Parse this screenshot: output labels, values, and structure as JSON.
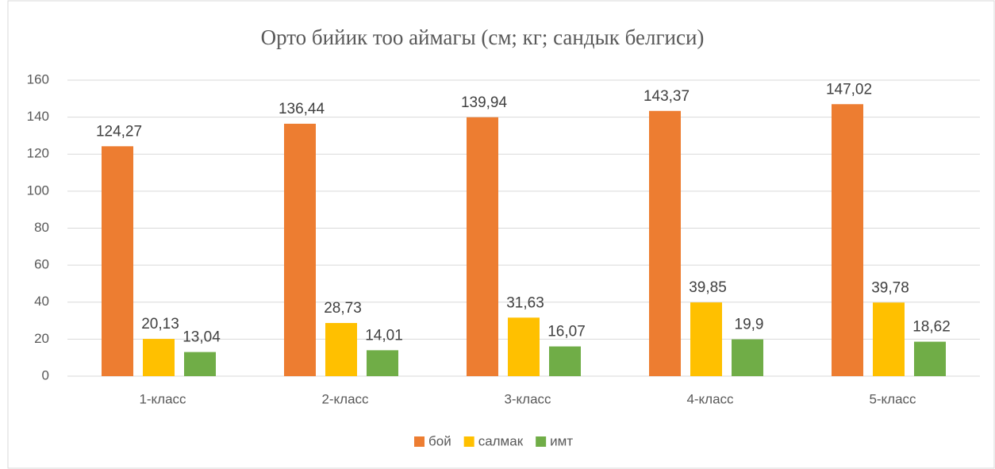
{
  "chart_data": {
    "type": "bar",
    "title": "Орто бийик тоо аймагы (см; кг; сандык белгиси)",
    "categories": [
      "1-класс",
      "2-класс",
      "3-класс",
      "4-класс",
      "5-класс"
    ],
    "series": [
      {
        "name": "бой",
        "color": "#ed7d31",
        "values": [
          124.27,
          136.44,
          139.94,
          143.37,
          147.02
        ],
        "value_labels": [
          "124,27",
          "136,44",
          "139,94",
          "143,37",
          "147,02"
        ]
      },
      {
        "name": "салмак",
        "color": "#ffc000",
        "values": [
          20.13,
          28.73,
          31.63,
          39.85,
          39.78
        ],
        "value_labels": [
          "20,13",
          "28,73",
          "31,63",
          "39,85",
          "39,78"
        ]
      },
      {
        "name": "имт",
        "color": "#70ad47",
        "values": [
          13.04,
          14.01,
          16.07,
          19.9,
          18.62
        ],
        "value_labels": [
          "13,04",
          "14,01",
          "16,07",
          "19,9",
          "18,62"
        ]
      }
    ],
    "ylim": [
      0,
      160
    ],
    "yticks": [
      0,
      20,
      40,
      60,
      80,
      100,
      120,
      140,
      160
    ],
    "grid": true,
    "legend": "bottom"
  }
}
